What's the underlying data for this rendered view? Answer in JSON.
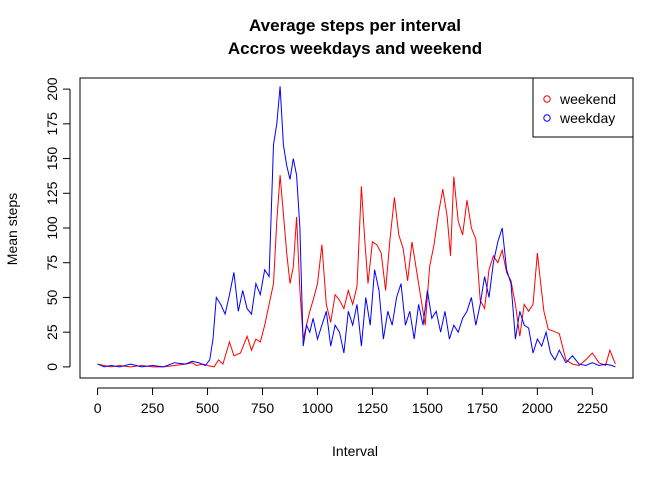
{
  "chart_data": {
    "type": "line",
    "title_lines": [
      "Average steps per interval",
      "Accros weekdays and weekend"
    ],
    "xlabel": "Interval",
    "ylabel": "Mean steps",
    "xlim": [
      -80,
      2435
    ],
    "ylim": [
      -8,
      208
    ],
    "x_ticks": [
      0,
      250,
      500,
      750,
      1000,
      1250,
      1500,
      1750,
      2000,
      2250
    ],
    "y_ticks": [
      0,
      25,
      50,
      75,
      100,
      125,
      150,
      175,
      200
    ],
    "legend_position": "top-right",
    "series": [
      {
        "name": "weekend",
        "color": "#ff0000",
        "x": [
          0,
          30,
          60,
          100,
          150,
          200,
          250,
          300,
          350,
          400,
          430,
          450,
          480,
          500,
          530,
          550,
          570,
          600,
          620,
          650,
          680,
          700,
          720,
          740,
          760,
          780,
          800,
          815,
          830,
          845,
          860,
          875,
          890,
          905,
          920,
          935,
          950,
          965,
          980,
          1000,
          1020,
          1040,
          1060,
          1080,
          1100,
          1120,
          1140,
          1160,
          1180,
          1200,
          1215,
          1230,
          1250,
          1270,
          1290,
          1310,
          1330,
          1350,
          1370,
          1390,
          1410,
          1430,
          1450,
          1470,
          1490,
          1510,
          1530,
          1550,
          1570,
          1590,
          1605,
          1620,
          1640,
          1660,
          1680,
          1700,
          1720,
          1740,
          1760,
          1780,
          1800,
          1820,
          1840,
          1860,
          1880,
          1900,
          1920,
          1940,
          1960,
          1980,
          2000,
          2015,
          2030,
          2050,
          2070,
          2100,
          2130,
          2160,
          2190,
          2220,
          2250,
          2280,
          2310,
          2330,
          2355
        ],
        "values": [
          2,
          1,
          0,
          1,
          0,
          1,
          0,
          0,
          1,
          2,
          3,
          1,
          2,
          1,
          0,
          5,
          2,
          18,
          8,
          10,
          22,
          12,
          20,
          18,
          30,
          45,
          60,
          105,
          138,
          110,
          82,
          60,
          72,
          108,
          55,
          20,
          30,
          40,
          48,
          60,
          88,
          45,
          32,
          52,
          48,
          42,
          55,
          45,
          58,
          130,
          92,
          60,
          90,
          88,
          82,
          55,
          92,
          122,
          95,
          85,
          62,
          90,
          70,
          50,
          30,
          72,
          88,
          110,
          128,
          108,
          80,
          137,
          105,
          95,
          120,
          100,
          92,
          48,
          42,
          70,
          80,
          75,
          84,
          68,
          62,
          45,
          22,
          45,
          40,
          45,
          82,
          60,
          40,
          27,
          26,
          24,
          5,
          2,
          1,
          5,
          10,
          3,
          1,
          12,
          2
        ]
      },
      {
        "name": "weekday",
        "color": "#0000ff",
        "x": [
          0,
          30,
          60,
          100,
          150,
          200,
          250,
          300,
          350,
          400,
          430,
          460,
          490,
          510,
          525,
          540,
          560,
          580,
          600,
          620,
          640,
          660,
          680,
          700,
          720,
          740,
          760,
          780,
          800,
          815,
          830,
          845,
          860,
          875,
          890,
          905,
          920,
          935,
          950,
          965,
          980,
          1000,
          1020,
          1040,
          1060,
          1080,
          1100,
          1120,
          1140,
          1160,
          1180,
          1200,
          1220,
          1240,
          1260,
          1280,
          1300,
          1320,
          1340,
          1360,
          1380,
          1400,
          1420,
          1440,
          1460,
          1480,
          1500,
          1520,
          1540,
          1560,
          1580,
          1600,
          1620,
          1640,
          1660,
          1680,
          1700,
          1720,
          1740,
          1760,
          1780,
          1800,
          1820,
          1840,
          1860,
          1880,
          1900,
          1920,
          1940,
          1960,
          1980,
          2000,
          2020,
          2040,
          2060,
          2080,
          2100,
          2130,
          2160,
          2190,
          2220,
          2250,
          2280,
          2310,
          2340,
          2355
        ],
        "values": [
          2,
          0,
          1,
          0,
          2,
          0,
          1,
          0,
          3,
          2,
          4,
          3,
          1,
          5,
          20,
          50,
          45,
          38,
          52,
          68,
          40,
          55,
          42,
          38,
          60,
          52,
          70,
          65,
          160,
          175,
          202,
          160,
          145,
          135,
          150,
          138,
          100,
          15,
          30,
          25,
          35,
          20,
          30,
          40,
          15,
          30,
          25,
          10,
          40,
          30,
          45,
          15,
          50,
          30,
          70,
          55,
          20,
          40,
          30,
          50,
          60,
          30,
          40,
          20,
          45,
          30,
          55,
          35,
          40,
          25,
          40,
          20,
          30,
          25,
          35,
          40,
          50,
          30,
          45,
          65,
          50,
          75,
          90,
          100,
          70,
          60,
          20,
          40,
          30,
          28,
          10,
          20,
          15,
          25,
          10,
          5,
          12,
          3,
          8,
          2,
          1,
          3,
          1,
          2,
          1,
          0
        ]
      }
    ]
  }
}
